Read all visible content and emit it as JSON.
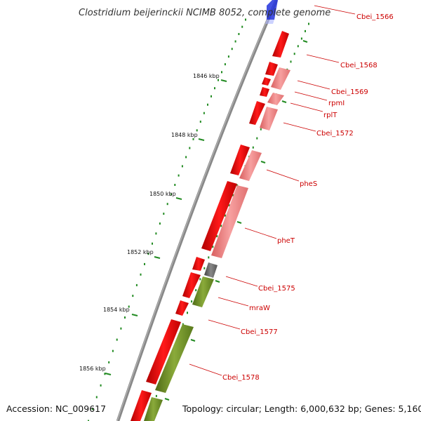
{
  "title": "Clostridium beijerinckii NCIMB 8052, complete genome",
  "footer": {
    "accession": "Accession: NC_009617",
    "summary": "Topology: circular; Length: 6,000,632 bp; Genes: 5,160"
  },
  "scale_labels": [
    "1846 kbp",
    "1848 kbp",
    "1850 kbp",
    "1852 kbp",
    "1854 kbp",
    "1856 kbp"
  ],
  "gene_labels": [
    "Cbei_1566",
    "Cbei_1568",
    "Cbei_1569",
    "rpmI",
    "rplT",
    "Cbei_1572",
    "pheS",
    "pheT",
    "Cbei_1575",
    "mraW",
    "Cbei_1577",
    "Cbei_1578"
  ],
  "colors": {
    "gene_red": "#ff0000",
    "gene_pink": "#f08080",
    "gene_olive": "#6b8e23",
    "gene_gray": "#666666",
    "backbone": "#888888",
    "tick_green": "#228b22",
    "label_red": "#cc0000",
    "feature_blue": "#0000cc"
  }
}
